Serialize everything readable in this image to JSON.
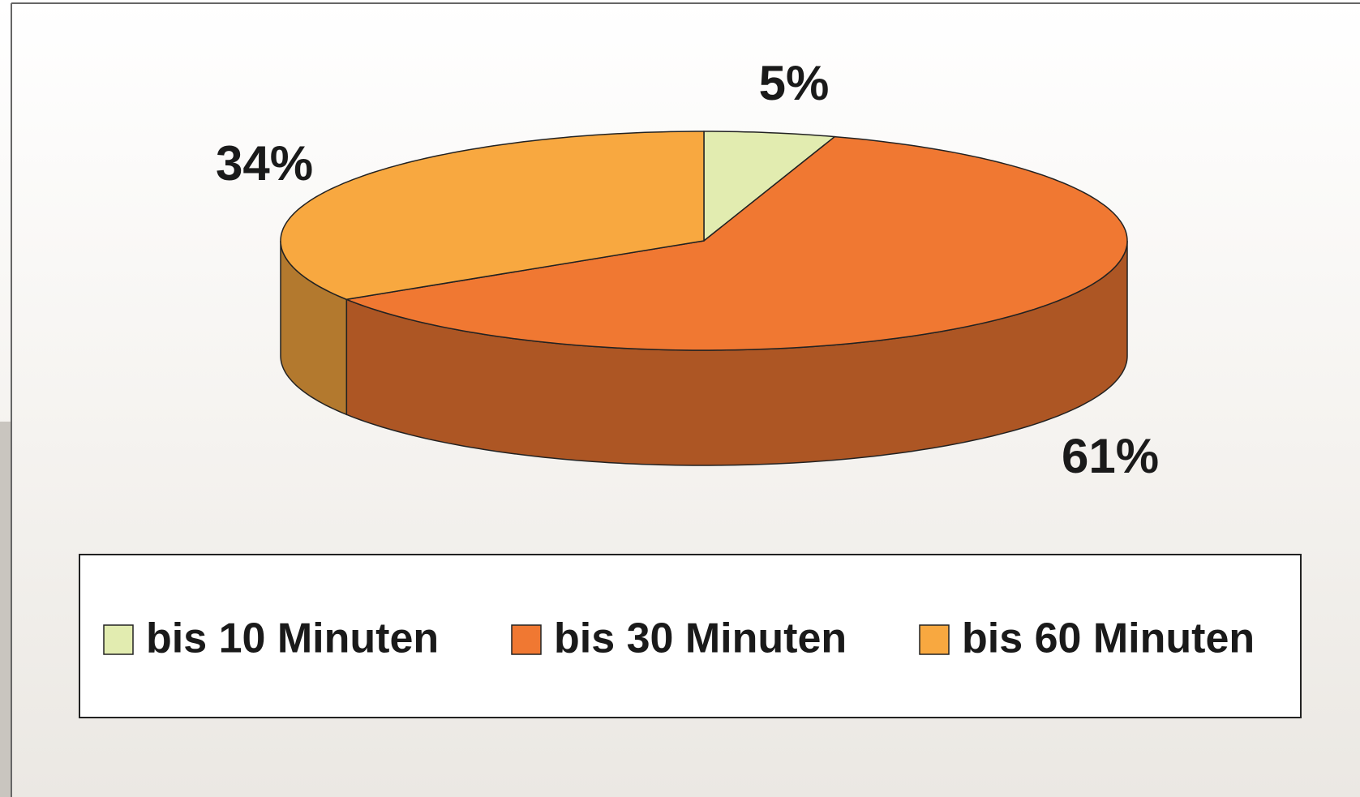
{
  "chart_data": {
    "type": "pie3d",
    "categories": [
      "bis 10 Minuten",
      "bis 30 Minuten",
      "bis 60 Minuten"
    ],
    "values": [
      5,
      61,
      34
    ],
    "value_labels": [
      "5%",
      "61%",
      "34%"
    ],
    "colors": [
      "#e2ecb0",
      "#f07832",
      "#f8a840"
    ],
    "legend": "bottom"
  }
}
